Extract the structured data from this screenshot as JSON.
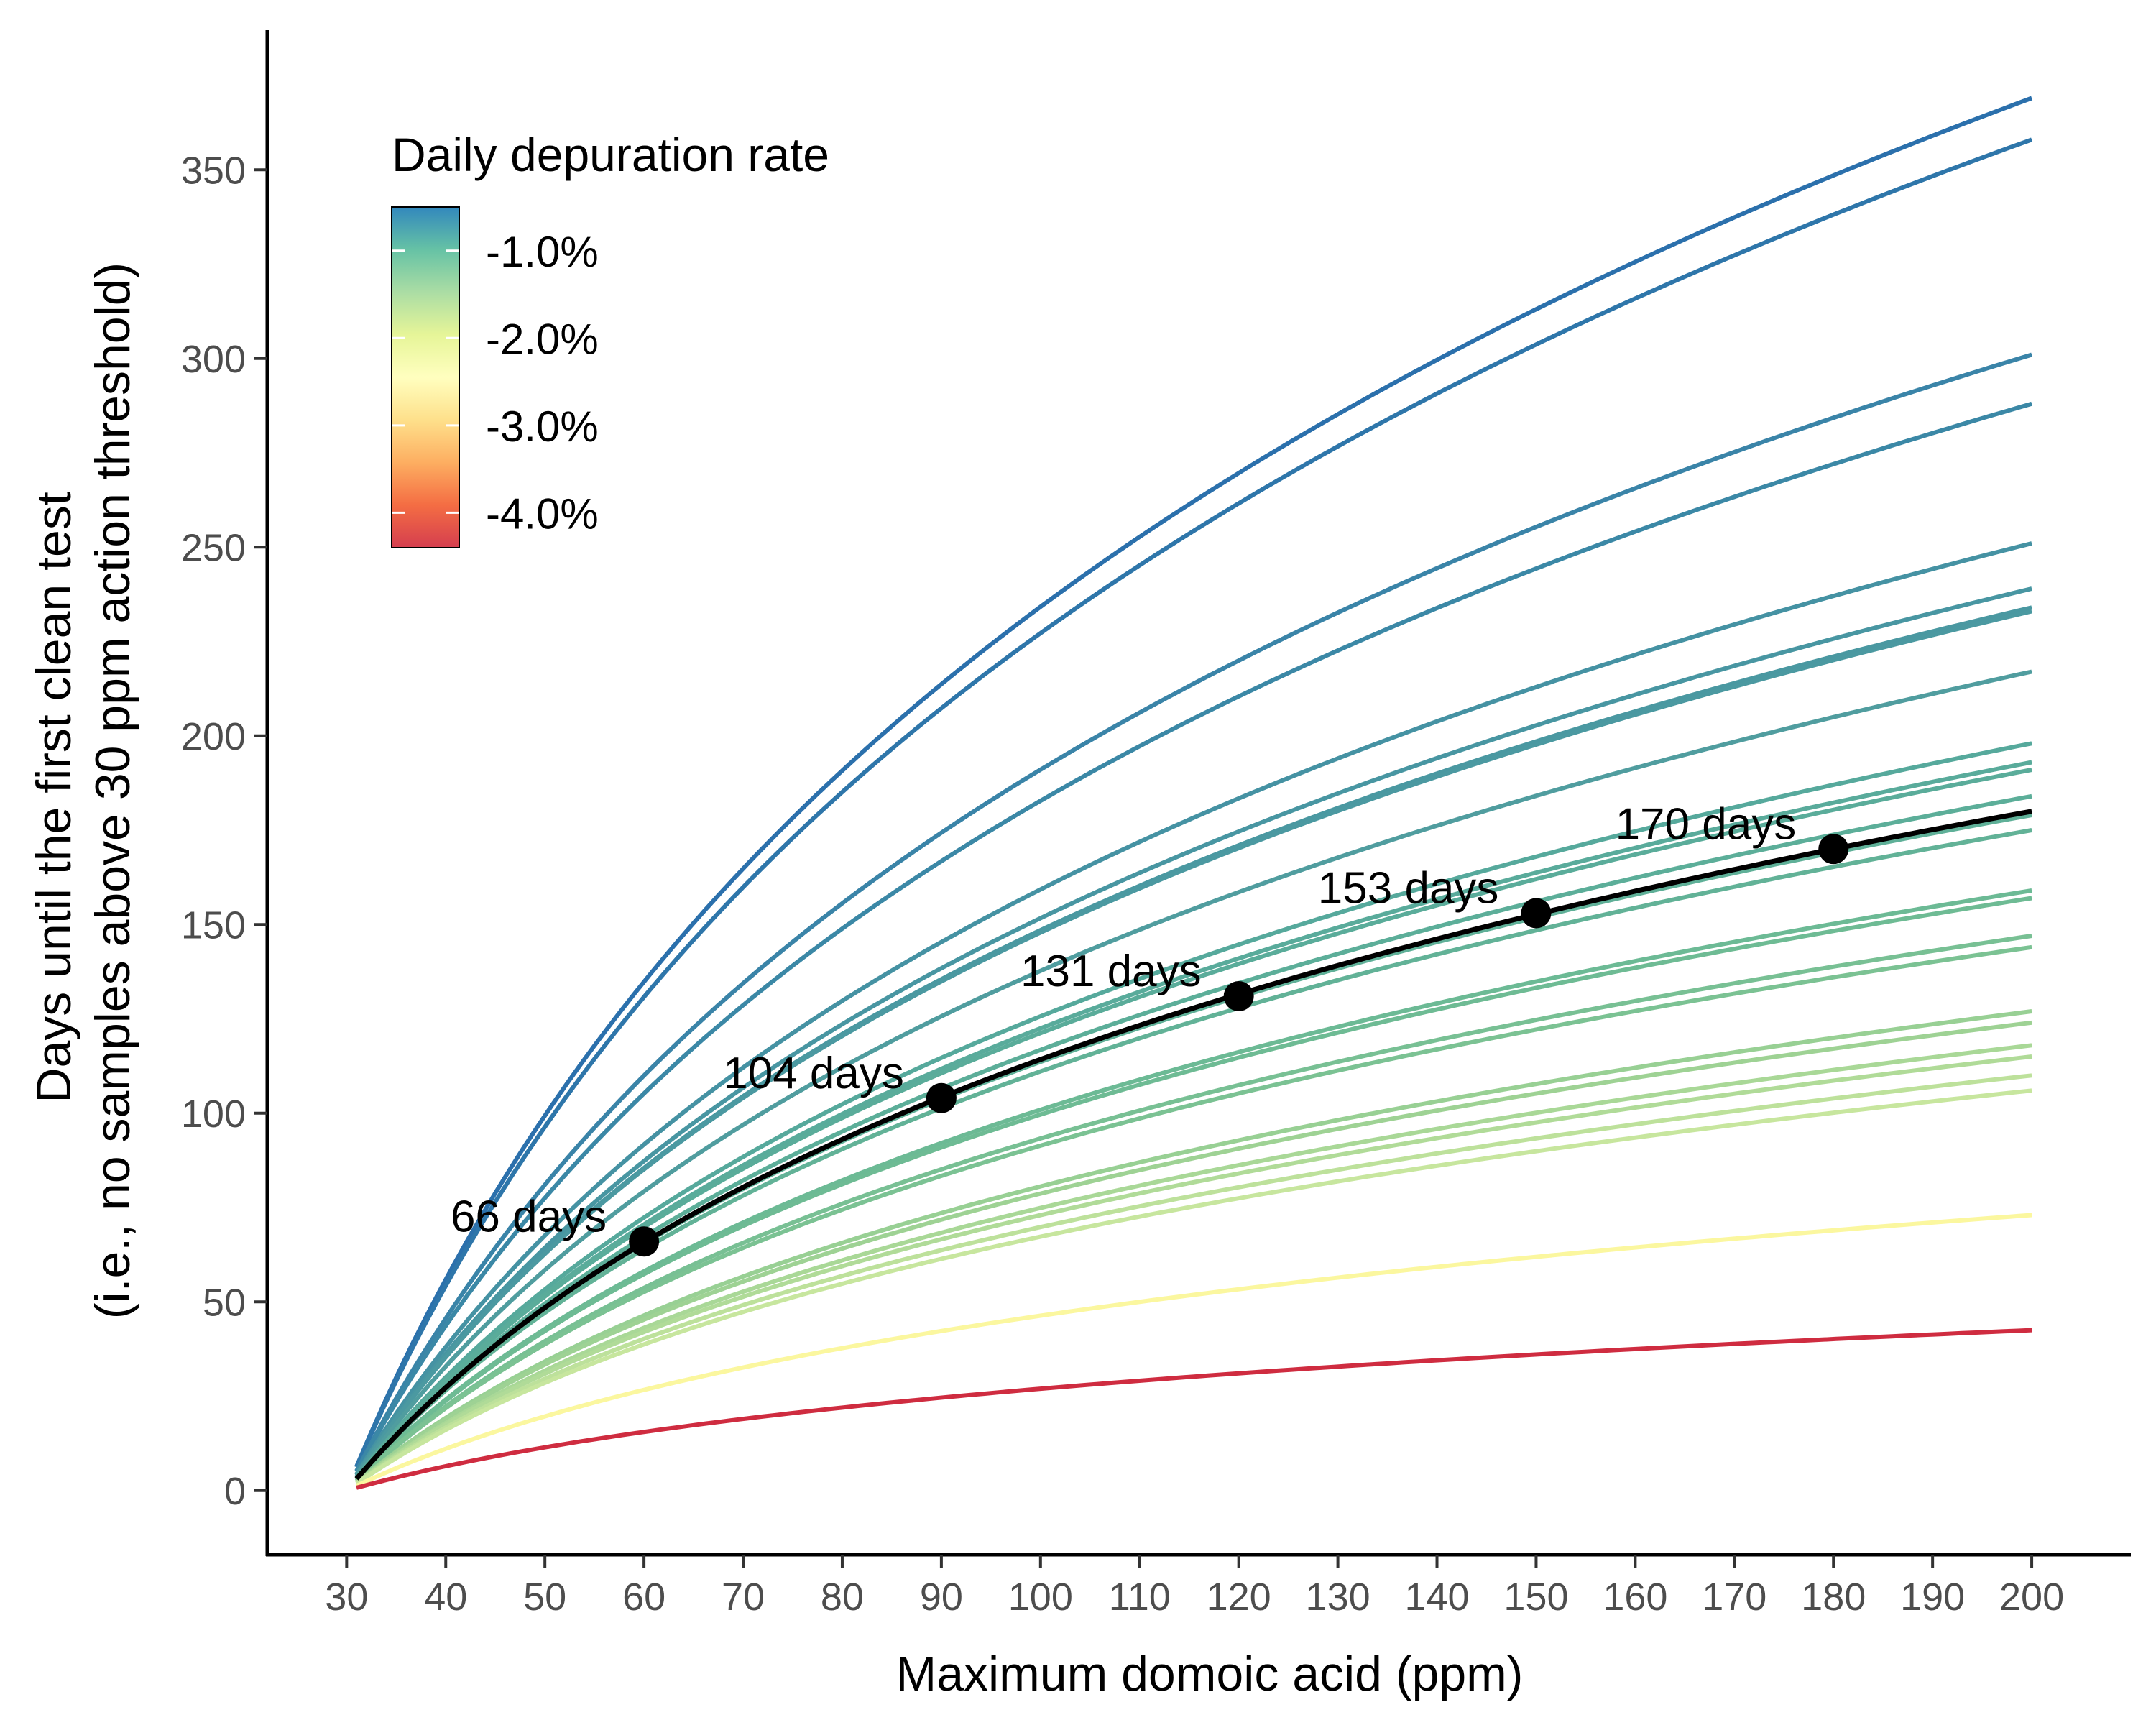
{
  "chart_data": {
    "type": "line",
    "xlabel": "Maximum domoic acid (ppm)",
    "ylabel_lines": [
      "Days until the first clean test",
      "(i.e., no samples above 30 ppm action threshold)"
    ],
    "xlim": [
      22,
      210
    ],
    "ylim": [
      -17,
      387
    ],
    "x_ticks": [
      30,
      40,
      50,
      60,
      70,
      80,
      90,
      100,
      110,
      120,
      130,
      140,
      150,
      160,
      170,
      180,
      190,
      200
    ],
    "y_ticks": [
      0,
      50,
      100,
      150,
      200,
      250,
      300,
      350
    ],
    "grid": false,
    "threshold_ppm": 30,
    "curve_x_range": [
      31,
      200
    ],
    "legend": {
      "title": "Daily depuration rate",
      "placement": "top-left",
      "labels": [
        "-1.0%",
        "-2.0%",
        "-3.0%",
        "-4.0%"
      ],
      "label_values": [
        -1.0,
        -2.0,
        -3.0,
        -4.0
      ],
      "range": [
        -4.4,
        -0.5
      ],
      "colors": [
        "#d53e4f",
        "#f46d43",
        "#fdae61",
        "#fee08b",
        "#ffffbf",
        "#e6f598",
        "#abdda4",
        "#66c2a5",
        "#3288bd"
      ]
    },
    "series": [
      {
        "day_at_200": 369,
        "color": "#2b70ac"
      },
      {
        "day_at_200": 358,
        "color": "#2e76aa"
      },
      {
        "day_at_200": 301,
        "color": "#3a84a8"
      },
      {
        "day_at_200": 288,
        "color": "#3b88a6"
      },
      {
        "day_at_200": 251,
        "color": "#4592a3"
      },
      {
        "day_at_200": 239,
        "color": "#4896a2"
      },
      {
        "day_at_200": 234,
        "color": "#4a98a1"
      },
      {
        "day_at_200": 233,
        "color": "#4b99a1"
      },
      {
        "day_at_200": 217,
        "color": "#509d9f"
      },
      {
        "day_at_200": 198,
        "color": "#56a99c"
      },
      {
        "day_at_200": 193,
        "color": "#59ab9b"
      },
      {
        "day_at_200": 191,
        "color": "#5aac9a"
      },
      {
        "day_at_200": 184,
        "color": "#5cae99"
      },
      {
        "day_at_200": 179,
        "color": "#5fb098"
      },
      {
        "day_at_200": 175,
        "color": "#62b297"
      },
      {
        "day_at_200": 159,
        "color": "#6cba95"
      },
      {
        "day_at_200": 157,
        "color": "#6ebb94"
      },
      {
        "day_at_200": 147,
        "color": "#78c094"
      },
      {
        "day_at_200": 144,
        "color": "#7bc293"
      },
      {
        "day_at_200": 127,
        "color": "#98d094"
      },
      {
        "day_at_200": 124,
        "color": "#9ed294"
      },
      {
        "day_at_200": 118,
        "color": "#a9d897"
      },
      {
        "day_at_200": 115,
        "color": "#b0db98"
      },
      {
        "day_at_200": 110,
        "color": "#bde19b"
      },
      {
        "day_at_200": 106,
        "color": "#c7e69e"
      },
      {
        "day_at_200": 73,
        "color": "#fbf79f"
      },
      {
        "day_at_200": 42.5,
        "color": "#cf2c40"
      }
    ],
    "highlight": {
      "name": "",
      "day_at_200": 180,
      "color": "#000000",
      "points": [
        {
          "x": 60,
          "y": 66,
          "label": "66 days"
        },
        {
          "x": 90,
          "y": 104,
          "label": "104 days"
        },
        {
          "x": 120,
          "y": 131,
          "label": "131 days"
        },
        {
          "x": 150,
          "y": 153,
          "label": "153 days"
        },
        {
          "x": 180,
          "y": 170,
          "label": "170 days"
        }
      ]
    }
  }
}
